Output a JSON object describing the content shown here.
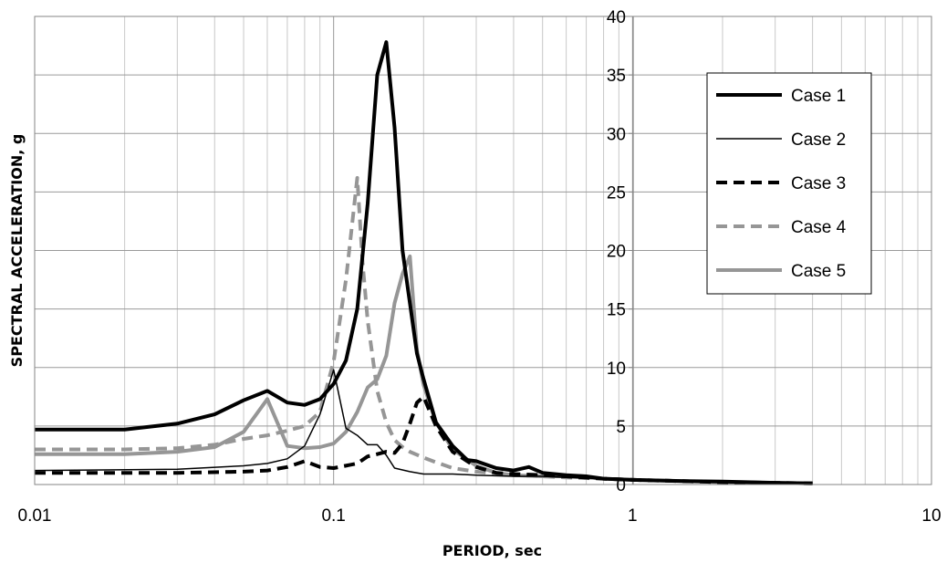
{
  "chart_data": {
    "type": "line",
    "title": "",
    "xlabel": "PERIOD, sec",
    "ylabel": "SPECTRAL ACCELERATION, g",
    "x_scale": "log",
    "xlim": [
      0.01,
      10
    ],
    "ylim": [
      0,
      40
    ],
    "x_ticks": [
      "0.01",
      "0.1",
      "1",
      "10"
    ],
    "y_ticks": [
      "0",
      "5",
      "10",
      "15",
      "20",
      "25",
      "30",
      "35",
      "40"
    ],
    "grid": true,
    "legend_position": "right",
    "series": [
      {
        "name": "Case 1",
        "style": "solid-thick",
        "color": "#000000",
        "points": [
          [
            0.01,
            4.7
          ],
          [
            0.02,
            4.7
          ],
          [
            0.03,
            5.2
          ],
          [
            0.04,
            6.0
          ],
          [
            0.05,
            7.2
          ],
          [
            0.06,
            8.0
          ],
          [
            0.07,
            7.0
          ],
          [
            0.08,
            6.8
          ],
          [
            0.09,
            7.3
          ],
          [
            0.1,
            8.6
          ],
          [
            0.11,
            10.6
          ],
          [
            0.12,
            15.0
          ],
          [
            0.13,
            24.0
          ],
          [
            0.14,
            35.0
          ],
          [
            0.15,
            37.8
          ],
          [
            0.16,
            30.5
          ],
          [
            0.17,
            20.0
          ],
          [
            0.18,
            15.5
          ],
          [
            0.19,
            11.2
          ],
          [
            0.2,
            9.0
          ],
          [
            0.22,
            5.3
          ],
          [
            0.25,
            3.3
          ],
          [
            0.28,
            2.1
          ],
          [
            0.3,
            2.0
          ],
          [
            0.35,
            1.4
          ],
          [
            0.4,
            1.2
          ],
          [
            0.45,
            1.5
          ],
          [
            0.5,
            1.0
          ],
          [
            0.6,
            0.8
          ],
          [
            0.7,
            0.7
          ],
          [
            0.8,
            0.5
          ],
          [
            1,
            0.4
          ],
          [
            1.5,
            0.3
          ],
          [
            2,
            0.25
          ],
          [
            3,
            0.15
          ],
          [
            4,
            0.1
          ]
        ]
      },
      {
        "name": "Case 2",
        "style": "solid-thin",
        "color": "#000000",
        "points": [
          [
            0.01,
            1.2
          ],
          [
            0.03,
            1.3
          ],
          [
            0.05,
            1.6
          ],
          [
            0.06,
            1.8
          ],
          [
            0.07,
            2.2
          ],
          [
            0.08,
            3.3
          ],
          [
            0.09,
            6.0
          ],
          [
            0.1,
            9.8
          ],
          [
            0.11,
            4.8
          ],
          [
            0.12,
            4.2
          ],
          [
            0.13,
            3.4
          ],
          [
            0.14,
            3.4
          ],
          [
            0.15,
            2.5
          ],
          [
            0.16,
            1.4
          ],
          [
            0.18,
            1.1
          ],
          [
            0.2,
            0.9
          ],
          [
            0.25,
            0.9
          ],
          [
            0.3,
            0.8
          ],
          [
            0.4,
            0.7
          ],
          [
            0.5,
            0.7
          ],
          [
            0.6,
            0.6
          ],
          [
            0.8,
            0.5
          ],
          [
            1,
            0.4
          ],
          [
            2,
            0.2
          ],
          [
            4,
            0.1
          ]
        ]
      },
      {
        "name": "Case 3",
        "style": "dashed-thick",
        "color": "#000000",
        "points": [
          [
            0.01,
            1.0
          ],
          [
            0.03,
            1.0
          ],
          [
            0.05,
            1.1
          ],
          [
            0.06,
            1.2
          ],
          [
            0.07,
            1.5
          ],
          [
            0.08,
            2.0
          ],
          [
            0.09,
            1.5
          ],
          [
            0.1,
            1.4
          ],
          [
            0.12,
            1.8
          ],
          [
            0.13,
            2.4
          ],
          [
            0.14,
            2.6
          ],
          [
            0.15,
            2.8
          ],
          [
            0.16,
            2.7
          ],
          [
            0.17,
            3.5
          ],
          [
            0.18,
            5.2
          ],
          [
            0.19,
            7.0
          ],
          [
            0.2,
            7.5
          ],
          [
            0.22,
            5.0
          ],
          [
            0.25,
            2.8
          ],
          [
            0.3,
            1.5
          ],
          [
            0.35,
            1.0
          ],
          [
            0.4,
            0.9
          ],
          [
            0.5,
            0.8
          ],
          [
            0.6,
            0.7
          ],
          [
            0.8,
            0.5
          ],
          [
            1,
            0.4
          ],
          [
            2,
            0.2
          ],
          [
            4,
            0.1
          ]
        ]
      },
      {
        "name": "Case 4",
        "style": "dashed-thick",
        "color": "#969696",
        "points": [
          [
            0.01,
            3.0
          ],
          [
            0.02,
            3.0
          ],
          [
            0.03,
            3.1
          ],
          [
            0.04,
            3.4
          ],
          [
            0.05,
            3.9
          ],
          [
            0.06,
            4.2
          ],
          [
            0.07,
            4.6
          ],
          [
            0.08,
            5.0
          ],
          [
            0.09,
            6.2
          ],
          [
            0.1,
            10.5
          ],
          [
            0.11,
            17.5
          ],
          [
            0.12,
            26.2
          ],
          [
            0.125,
            19.0
          ],
          [
            0.13,
            14.0
          ],
          [
            0.14,
            8.0
          ],
          [
            0.15,
            5.3
          ],
          [
            0.16,
            3.8
          ],
          [
            0.17,
            3.2
          ],
          [
            0.18,
            2.8
          ],
          [
            0.2,
            2.3
          ],
          [
            0.22,
            1.9
          ],
          [
            0.25,
            1.4
          ],
          [
            0.3,
            1.1
          ],
          [
            0.4,
            0.8
          ],
          [
            0.5,
            0.7
          ],
          [
            0.6,
            0.6
          ],
          [
            0.8,
            0.5
          ],
          [
            1,
            0.4
          ],
          [
            2,
            0.2
          ],
          [
            4,
            0.1
          ]
        ]
      },
      {
        "name": "Case 5",
        "style": "solid-thick",
        "color": "#969696",
        "points": [
          [
            0.01,
            2.6
          ],
          [
            0.02,
            2.6
          ],
          [
            0.03,
            2.8
          ],
          [
            0.04,
            3.2
          ],
          [
            0.05,
            4.5
          ],
          [
            0.06,
            7.3
          ],
          [
            0.07,
            3.3
          ],
          [
            0.08,
            3.1
          ],
          [
            0.09,
            3.2
          ],
          [
            0.1,
            3.5
          ],
          [
            0.11,
            4.5
          ],
          [
            0.12,
            6.2
          ],
          [
            0.13,
            8.3
          ],
          [
            0.14,
            9.0
          ],
          [
            0.15,
            11.0
          ],
          [
            0.16,
            15.5
          ],
          [
            0.17,
            18.0
          ],
          [
            0.18,
            19.5
          ],
          [
            0.19,
            11.5
          ],
          [
            0.2,
            8.5
          ],
          [
            0.22,
            5.3
          ],
          [
            0.25,
            3.0
          ],
          [
            0.3,
            1.6
          ],
          [
            0.35,
            1.0
          ],
          [
            0.4,
            0.8
          ],
          [
            0.5,
            0.7
          ],
          [
            0.6,
            0.7
          ],
          [
            0.8,
            0.5
          ],
          [
            1,
            0.4
          ],
          [
            2,
            0.2
          ],
          [
            4,
            0.1
          ]
        ]
      }
    ]
  }
}
